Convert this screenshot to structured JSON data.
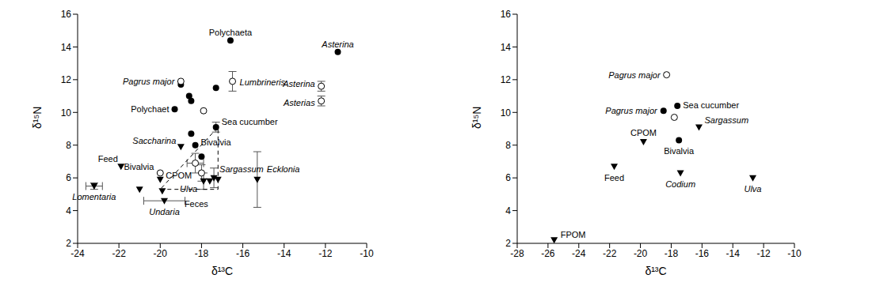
{
  "chart_data": [
    {
      "type": "scatter",
      "x_label": "δ¹³C",
      "y_label": "δ¹⁵N",
      "xlim": [
        -24,
        -10
      ],
      "ylim": [
        2,
        16
      ],
      "xticks": [
        -24,
        -22,
        -20,
        -18,
        -16,
        -14,
        -12,
        -10
      ],
      "yticks": [
        2,
        4,
        6,
        8,
        10,
        12,
        14,
        16
      ],
      "series": [
        {
          "marker": "circle",
          "color": "#000000",
          "x": [
            -16.6,
            -11.4,
            -17.3,
            -18.6,
            -18.5,
            -19.3,
            -17.3,
            -18.5,
            -18.3,
            -18.0,
            -19.0
          ],
          "values": [
            14.4,
            13.7,
            11.5,
            11.0,
            10.7,
            10.2,
            9.1,
            8.7,
            8.0,
            7.3,
            11.7
          ],
          "labels": [
            "Polychaeta",
            "Asterina",
            null,
            null,
            null,
            "Polychaet",
            "Sea cucumber",
            null,
            "Bivalvia",
            null,
            null
          ],
          "y_error": [
            null,
            null,
            null,
            null,
            null,
            null,
            0.3,
            null,
            null,
            null,
            null
          ],
          "x_error": [
            null,
            null,
            null,
            null,
            null,
            null,
            null,
            null,
            null,
            null,
            null
          ]
        },
        {
          "marker": "open_circle",
          "color": "#000000",
          "x": [
            -19.0,
            -16.5,
            -17.9,
            -12.2,
            -12.2,
            -18.3,
            -18.0,
            -20.0
          ],
          "values": [
            11.9,
            11.9,
            10.1,
            11.6,
            10.7,
            6.9,
            6.3,
            6.3
          ],
          "labels": [
            "Pagrus major",
            "Lumbrineris",
            null,
            "Asterina",
            "Asterias",
            null,
            null,
            "Bivalvia"
          ],
          "y_error": [
            null,
            0.6,
            null,
            0.3,
            0.3,
            0.6,
            0.5,
            null
          ],
          "x_error": [
            null,
            null,
            null,
            null,
            null,
            0.4,
            null,
            null
          ]
        },
        {
          "marker": "triangle_down",
          "color": "#000000",
          "x": [
            -23.2,
            -21.9,
            -19.0,
            -20.0,
            -21.0,
            -19.8,
            -19.9,
            -17.9,
            -17.4,
            -17.6,
            -17.2,
            -15.3
          ],
          "values": [
            5.5,
            6.7,
            7.9,
            5.9,
            5.3,
            4.6,
            5.2,
            5.8,
            6.0,
            5.8,
            5.9,
            5.9
          ],
          "labels": [
            "Lomentaria",
            "Feed",
            "Saccharina",
            "CPOM",
            null,
            "Undaria",
            "Feces",
            "Ulva",
            "Sargassum",
            null,
            null,
            "Ecklonia"
          ],
          "y_error": [
            0.2,
            null,
            null,
            null,
            null,
            null,
            null,
            0.5,
            0.6,
            null,
            null,
            1.7
          ],
          "x_error": [
            0.4,
            null,
            null,
            null,
            null,
            1.0,
            null,
            null,
            null,
            null,
            null,
            null
          ]
        },
        {
          "type": "line",
          "line_style": "dashed",
          "color": "#000000",
          "x": [
            -20.0,
            -17.2,
            -17.2,
            -20.0
          ],
          "values": [
            5.3,
            5.3,
            9.1,
            5.3
          ]
        }
      ]
    },
    {
      "type": "scatter",
      "x_label": "δ¹³C",
      "y_label": "δ¹⁵N",
      "xlim": [
        -28,
        -10
      ],
      "ylim": [
        2,
        16
      ],
      "xticks": [
        -28,
        -26,
        -24,
        -22,
        -20,
        -18,
        -16,
        -14,
        -12,
        -10
      ],
      "yticks": [
        2,
        4,
        6,
        8,
        10,
        12,
        14,
        16
      ],
      "series": [
        {
          "marker": "circle",
          "color": "#000000",
          "x": [
            -18.5,
            -17.6,
            -17.5
          ],
          "values": [
            10.1,
            10.4,
            8.3
          ],
          "labels": [
            "Pagrus major",
            "Sea cucumber",
            "Bivalvia"
          ]
        },
        {
          "marker": "open_circle",
          "color": "#000000",
          "x": [
            -18.3,
            -17.8
          ],
          "values": [
            12.3,
            9.7
          ],
          "labels": [
            "Pagrus major",
            null
          ]
        },
        {
          "marker": "triangle_down",
          "color": "#000000",
          "x": [
            -16.2,
            -19.8,
            -21.7,
            -17.4,
            -12.7,
            -25.6
          ],
          "values": [
            9.1,
            8.2,
            6.7,
            6.3,
            6.0,
            2.2
          ],
          "labels": [
            "Sargassum",
            "CPOM",
            "Feed",
            "Codium",
            "Ulva",
            "FPOM"
          ]
        }
      ]
    }
  ]
}
